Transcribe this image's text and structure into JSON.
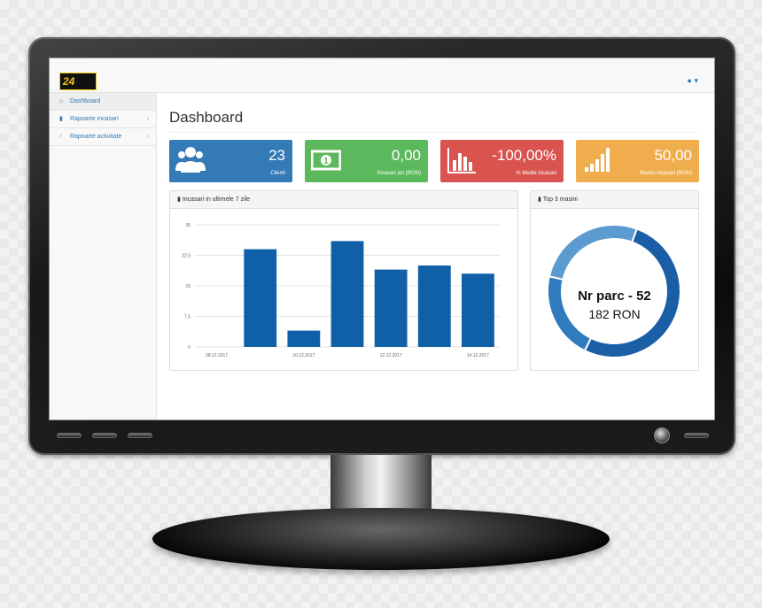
{
  "app": {
    "logo_num": "24",
    "logo_text": "pay",
    "user_icon": "▾"
  },
  "sidebar": {
    "items": [
      {
        "label": "Dashboard",
        "icon": "home-icon",
        "active": true
      },
      {
        "label": "Rapoarte incasari",
        "icon": "bar-chart-icon",
        "active": false
      },
      {
        "label": "Rapoarte activitate",
        "icon": "person-icon",
        "active": false
      }
    ]
  },
  "page": {
    "title": "Dashboard"
  },
  "cards": [
    {
      "value": "23",
      "label": "Clienti",
      "color": "#337ab7",
      "icon": "users-icon"
    },
    {
      "value": "0,00",
      "label": "Incasari azi (RON)",
      "color": "#5cb85c",
      "icon": "money-icon"
    },
    {
      "value": "-100,00%",
      "label": "% Medie incasari",
      "color": "#d9534f",
      "icon": "bar-chart-icon"
    },
    {
      "value": "50,00",
      "label": "Maxim incasari (RON)",
      "color": "#f0ad4e",
      "icon": "signal-icon"
    }
  ],
  "bar_panel": {
    "title": "Incasari in ultimele 7 zile"
  },
  "donut_panel": {
    "title": "Top 3 masini",
    "center_line1": "Nr parc - 52",
    "center_line2": "182 RON"
  },
  "chart_data": [
    {
      "type": "bar",
      "title": "Incasari in ultimele 7 zile",
      "categories": [
        "08.12.2017",
        "09.12.2017",
        "10.12.2017",
        "11.12.2017",
        "12.12.2017",
        "13.12.2017",
        "14.12.2017"
      ],
      "x_tick_labels": [
        "08.12.2017",
        "",
        "10.12.2017",
        "",
        "12.12.2017",
        "",
        "14.12.2017"
      ],
      "values": [
        0,
        24,
        4,
        26,
        19,
        20,
        18
      ],
      "yticks": [
        "0",
        "7.5",
        "15",
        "22.5",
        "30"
      ],
      "ylim": [
        0,
        30
      ],
      "grid": true,
      "color": "#1060a8"
    },
    {
      "type": "pie",
      "title": "Top 3 masini",
      "slices": [
        {
          "value": 182,
          "color": "#1a5fa6"
        },
        {
          "value": 75,
          "color": "#2f7bbd"
        },
        {
          "value": 95,
          "color": "#5b9bd0"
        }
      ]
    }
  ]
}
